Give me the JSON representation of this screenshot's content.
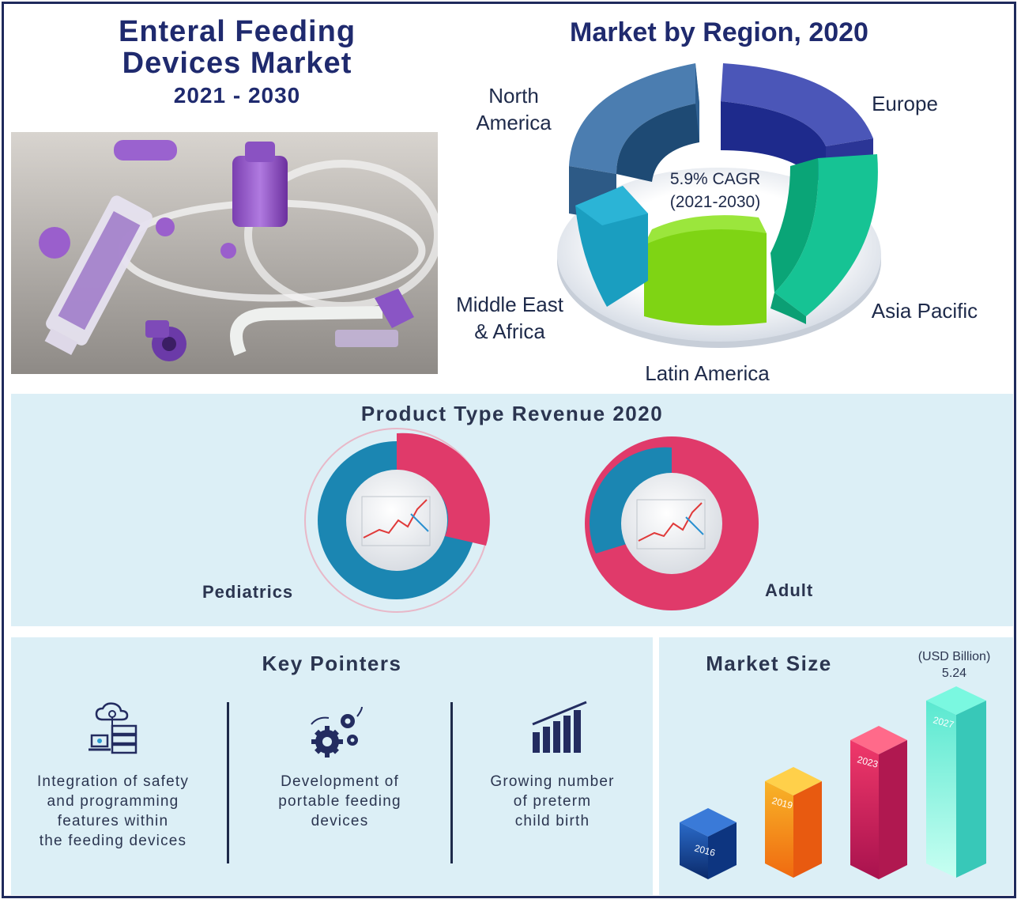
{
  "header": {
    "title_line1": "Enteral Feeding",
    "title_line2": "Devices Market",
    "period": "2021 - 2030"
  },
  "region_chart": {
    "title": "Market by Region, 2020",
    "center_line1": "5.9% CAGR",
    "center_line2": "(2021-2030)",
    "labels": {
      "north_america_1": "North",
      "north_america_2": "America",
      "europe": "Europe",
      "asia_pacific": "Asia Pacific",
      "latin_america": "Latin America",
      "mea_1": "Middle East",
      "mea_2": "& Africa"
    },
    "colors": {
      "north_america": "#3e6f9e",
      "europe": "#2a3594",
      "asia_pacific": "#10c48d",
      "latin_america": "#7bd21a",
      "mea": "#1a97bc"
    }
  },
  "product_type": {
    "title": "Product Type Revenue 2020",
    "pediatrics_label": "Pediatrics",
    "adult_label": "Adult",
    "colors": {
      "pink": "#e03a6a",
      "blue": "#1b86b2"
    }
  },
  "key_pointers": {
    "title": "Key Pointers",
    "items": [
      {
        "icon": "cloud-server-icon",
        "line1": "Integration of safety",
        "line2": "and programming",
        "line3": "features within",
        "line4": "the feeding devices"
      },
      {
        "icon": "gears-icon",
        "line1": "Development of",
        "line2": "portable feeding",
        "line3": "devices"
      },
      {
        "icon": "growth-bars-icon",
        "line1": "Growing number",
        "line2": "of preterm",
        "line3": "child birth"
      }
    ]
  },
  "market_size": {
    "title": "Market Size",
    "unit": "(USD Billion)",
    "value_label": "5.24",
    "years": [
      "2016",
      "2019",
      "2023",
      "2027"
    ],
    "colors": [
      "#1c4fa0",
      "#f6a01a",
      "#e8345e",
      "#4ad8c8"
    ]
  }
}
